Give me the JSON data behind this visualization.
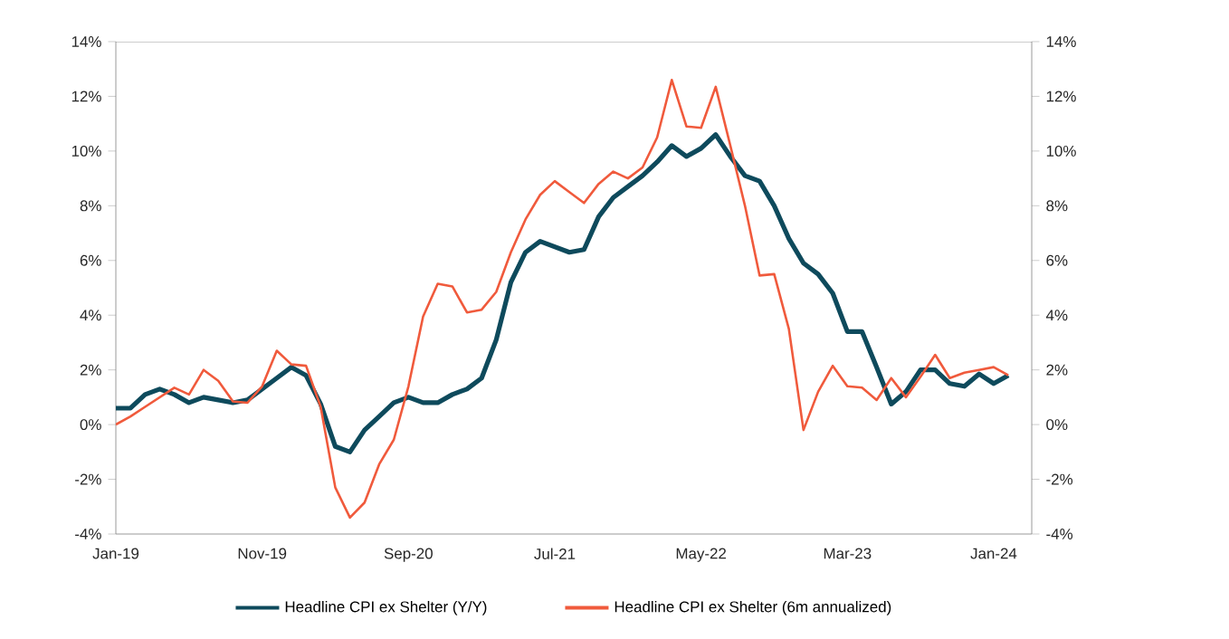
{
  "chart_data": {
    "type": "line",
    "categories": [
      "Jan-19",
      null,
      null,
      null,
      null,
      null,
      null,
      null,
      null,
      null,
      "Nov-19",
      null,
      null,
      null,
      null,
      null,
      null,
      null,
      null,
      null,
      "Sep-20",
      null,
      null,
      null,
      null,
      null,
      null,
      null,
      null,
      null,
      "Jul-21",
      null,
      null,
      null,
      null,
      null,
      null,
      null,
      null,
      null,
      "May-22",
      null,
      null,
      null,
      null,
      null,
      null,
      null,
      null,
      null,
      "Mar-23",
      null,
      null,
      null,
      null,
      null,
      null,
      null,
      null,
      null,
      "Jan-24",
      null
    ],
    "series": [
      {
        "name": "Headline CPI ex Shelter (Y/Y)",
        "color": "#0e4a5c",
        "values": [
          0.6,
          0.6,
          1.1,
          1.3,
          1.1,
          0.8,
          1.0,
          0.9,
          0.8,
          0.9,
          1.3,
          1.7,
          2.1,
          1.8,
          0.75,
          -0.8,
          -1.0,
          -0.2,
          0.3,
          0.8,
          1.0,
          0.8,
          0.8,
          1.1,
          1.3,
          1.7,
          3.1,
          5.2,
          6.3,
          6.7,
          6.5,
          6.3,
          6.4,
          7.6,
          8.3,
          8.7,
          9.1,
          9.6,
          10.2,
          9.8,
          10.1,
          10.6,
          9.8,
          9.1,
          8.9,
          8.0,
          6.8,
          5.9,
          5.5,
          4.8,
          3.4,
          3.4,
          2.1,
          0.75,
          1.2,
          2.0,
          2.0,
          1.5,
          1.4,
          1.85,
          1.5,
          1.8
        ]
      },
      {
        "name": "Headline CPI ex Shelter (6m annualized)",
        "color": "#f05a3c",
        "values": [
          0.0,
          0.3,
          0.65,
          1.0,
          1.35,
          1.1,
          2.0,
          1.6,
          0.85,
          0.8,
          1.4,
          2.7,
          2.2,
          2.15,
          0.65,
          -2.3,
          -3.4,
          -2.85,
          -1.45,
          -0.55,
          1.4,
          3.95,
          5.15,
          5.05,
          4.1,
          4.2,
          4.85,
          6.3,
          7.5,
          8.4,
          8.9,
          8.5,
          8.1,
          8.8,
          9.25,
          9.0,
          9.4,
          10.5,
          12.6,
          10.9,
          10.85,
          12.35,
          10.2,
          8.0,
          5.45,
          5.5,
          3.5,
          -0.2,
          1.2,
          2.15,
          1.4,
          1.35,
          0.9,
          1.7,
          1.0,
          1.75,
          2.55,
          1.7,
          1.9,
          2.0,
          2.1,
          1.8
        ]
      }
    ],
    "ylim": [
      -4,
      14
    ],
    "yticks": [
      {
        "value": -4,
        "label": "-4%"
      },
      {
        "value": -2,
        "label": "-2%"
      },
      {
        "value": 0,
        "label": "0%"
      },
      {
        "value": 2,
        "label": "2%"
      },
      {
        "value": 4,
        "label": "4%"
      },
      {
        "value": 6,
        "label": "6%"
      },
      {
        "value": 8,
        "label": "8%"
      },
      {
        "value": 10,
        "label": "10%"
      },
      {
        "value": 12,
        "label": "12%"
      },
      {
        "value": 14,
        "label": "14%"
      }
    ],
    "y2lim": [
      -4,
      14
    ],
    "y2ticks": [
      {
        "value": -4,
        "label": "-4%"
      },
      {
        "value": -2,
        "label": "-2%"
      },
      {
        "value": 0,
        "label": "0%"
      },
      {
        "value": 2,
        "label": "2%"
      },
      {
        "value": 4,
        "label": "4%"
      },
      {
        "value": 6,
        "label": "6%"
      },
      {
        "value": 8,
        "label": "8%"
      },
      {
        "value": 10,
        "label": "10%"
      },
      {
        "value": 12,
        "label": "12%"
      },
      {
        "value": 14,
        "label": "14%"
      }
    ],
    "grid": false,
    "legend": "bottom",
    "line_style": "solid"
  }
}
